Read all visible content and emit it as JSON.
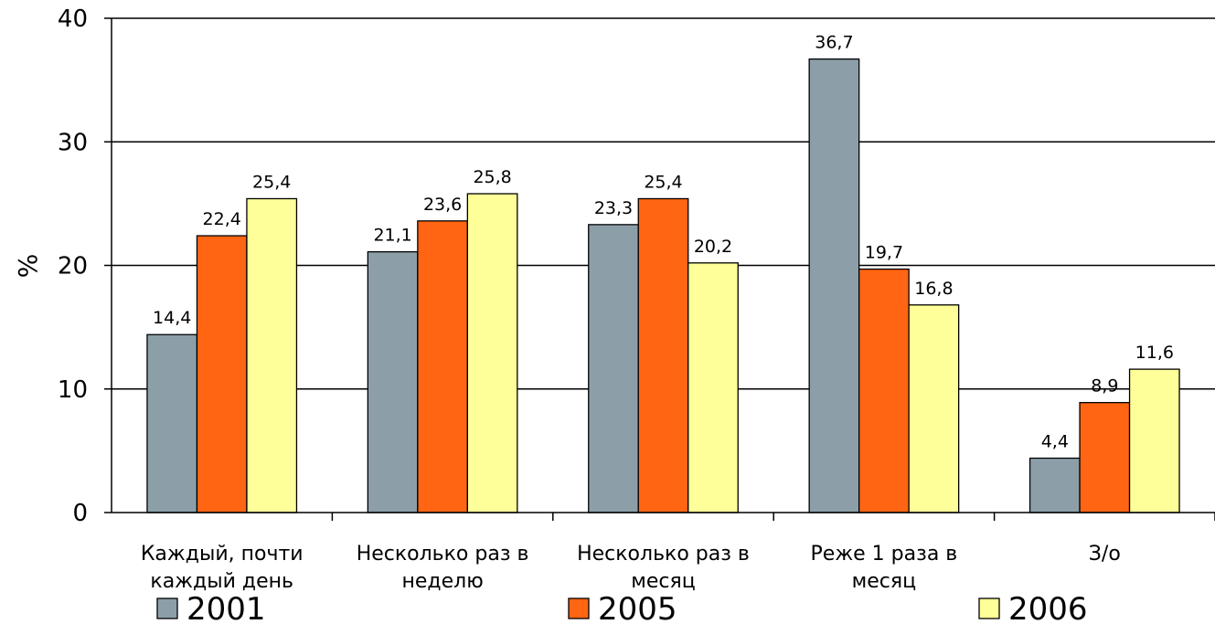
{
  "chart_data": {
    "type": "bar",
    "ylabel": "%",
    "ylim": [
      0,
      40
    ],
    "yticks": [
      0,
      10,
      20,
      30,
      40
    ],
    "grid": true,
    "legend_position": "bottom",
    "categories": [
      [
        "Каждый, почти",
        "каждый день"
      ],
      [
        "Несколько раз в",
        "неделю"
      ],
      [
        "Несколько раз в",
        "месяц"
      ],
      [
        "Реже 1 раза в",
        "месяц"
      ],
      [
        "З/о"
      ]
    ],
    "series": [
      {
        "name": "2001",
        "color": "#8c9fa9",
        "values": [
          14.4,
          21.1,
          23.3,
          36.7,
          4.4
        ],
        "labels": [
          "14,4",
          "21,1",
          "23,3",
          "36,7",
          "4,4"
        ]
      },
      {
        "name": "2005",
        "color": "#ff6512",
        "values": [
          22.4,
          23.6,
          25.4,
          19.7,
          8.9
        ],
        "labels": [
          "22,4",
          "23,6",
          "25,4",
          "19,7",
          "8,9"
        ]
      },
      {
        "name": "2006",
        "color": "#ffff99",
        "values": [
          25.4,
          25.8,
          20.2,
          16.8,
          11.6
        ],
        "labels": [
          "25,4",
          "25,8",
          "20,2",
          "16,8",
          "11,6"
        ]
      }
    ]
  }
}
